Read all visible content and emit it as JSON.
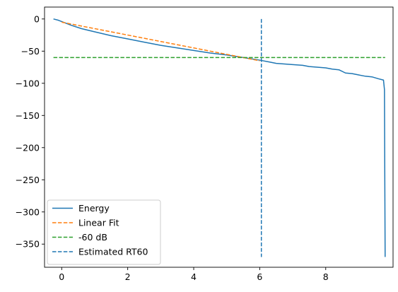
{
  "chart_data": {
    "type": "line",
    "title": "",
    "xlabel": "",
    "ylabel": "",
    "xlim": [
      -0.52,
      10.04
    ],
    "ylim": [
      -386.0,
      18.5
    ],
    "xticks": [
      0,
      2,
      4,
      6,
      8
    ],
    "yticks": [
      0,
      -50,
      -100,
      -150,
      -200,
      -250,
      -300,
      -350
    ],
    "grid": false,
    "legend": "lower-left",
    "series": [
      {
        "name": "Energy",
        "style": "solid",
        "color": "#1f77b4",
        "x": [
          -0.25,
          -0.1,
          0.1,
          0.3,
          0.6,
          1.0,
          1.5,
          2.0,
          2.5,
          3.0,
          3.5,
          4.0,
          4.5,
          5.0,
          5.5,
          6.0,
          6.3,
          6.5,
          7.0,
          7.3,
          7.5,
          8.0,
          8.2,
          8.4,
          8.6,
          8.8,
          9.0,
          9.2,
          9.4,
          9.6,
          9.75,
          9.78,
          9.79,
          9.8
        ],
        "y": [
          0,
          -2,
          -6,
          -10,
          -15,
          -20,
          -26,
          -31,
          -36,
          -41,
          -45,
          -49,
          -53,
          -56,
          -60,
          -64,
          -67,
          -69,
          -71,
          -72,
          -74,
          -76,
          -78,
          -79,
          -84,
          -85,
          -87,
          -89,
          -90,
          -93,
          -95,
          -110,
          -250,
          -370
        ]
      },
      {
        "name": "Linear Fit",
        "style": "dashed",
        "color": "#ff7f0e",
        "x": [
          0.0,
          6.0
        ],
        "y": [
          -5.0,
          -65.0
        ]
      },
      {
        "name": "-60 dB",
        "style": "dashed",
        "color": "#2ca02c",
        "x": [
          -0.25,
          9.8
        ],
        "y": [
          -60,
          -60
        ]
      },
      {
        "name": "Estimated RT60",
        "style": "dashed",
        "color": "#1f77b4",
        "x": [
          6.05,
          6.05
        ],
        "y": [
          0,
          -370
        ]
      }
    ]
  }
}
